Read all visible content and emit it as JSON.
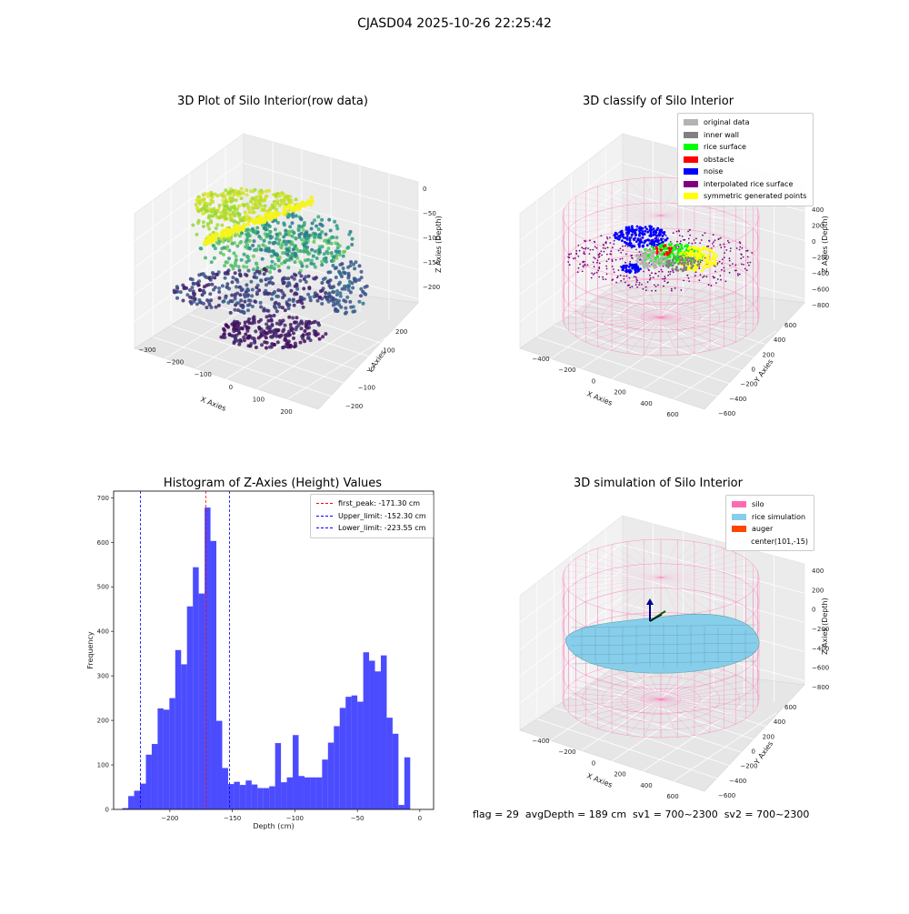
{
  "suptitle": "CJASD04 2025-10-26 22:25:42",
  "panels": {
    "raw": {
      "title": "3D Plot of Silo Interior(row data)",
      "xlabel": "X Axies",
      "ylabel": "Y Axies",
      "zlabel": "Z Axies (Depth)",
      "xticks": [
        "−300",
        "−200",
        "−100",
        "0",
        "100",
        "200"
      ],
      "yticks": [
        "−200",
        "−100",
        "0",
        "100",
        "200"
      ],
      "zticks": [
        "0",
        "−50",
        "−100",
        "−150",
        "−200"
      ]
    },
    "classify": {
      "title": "3D classify of Silo Interior",
      "xlabel": "X Axies",
      "ylabel": "Y Axies",
      "zlabel": "Z Axies (Depth)",
      "xticks": [
        "−400",
        "−200",
        "0",
        "200",
        "400",
        "600"
      ],
      "yticks": [
        "−600",
        "−400",
        "−200",
        "0",
        "200",
        "400",
        "600"
      ],
      "zticks": [
        "400",
        "200",
        "0",
        "−200",
        "−400",
        "−600",
        "−800"
      ],
      "legend": [
        {
          "label": "original data",
          "color": "#b3b3b3"
        },
        {
          "label": "inner wall",
          "color": "#808080"
        },
        {
          "label": "rice surface",
          "color": "#00ff00"
        },
        {
          "label": "obstacle",
          "color": "#ff0000"
        },
        {
          "label": "noise",
          "color": "#0000ff"
        },
        {
          "label": "interpolated rice surface",
          "color": "#800080"
        },
        {
          "label": "symmetric generated points",
          "color": "#ffff00"
        }
      ]
    },
    "simulation": {
      "title": "3D simulation of Silo Interior",
      "xlabel": "X Axies",
      "ylabel": "Y Axies",
      "zlabel": "Z Axies (Depth)",
      "xticks": [
        "−400",
        "−200",
        "0",
        "200",
        "400",
        "600"
      ],
      "yticks": [
        "−600",
        "−400",
        "−200",
        "0",
        "200",
        "400",
        "600"
      ],
      "zticks": [
        "400",
        "200",
        "0",
        "−200",
        "−400",
        "−600",
        "−800"
      ],
      "legend": [
        {
          "label": "silo",
          "color": "#ff69b4"
        },
        {
          "label": "rice simulation",
          "color": "#87ceeb"
        },
        {
          "label": "auger",
          "color": "#ff4500"
        },
        {
          "label": "center(101,-15)",
          "color": ""
        }
      ]
    }
  },
  "chart_data": {
    "type": "bar",
    "title": "Histogram of Z-Axies (Height) Values",
    "xlabel": "Depth (cm)",
    "ylabel": "Frequency",
    "xlim": [
      -245,
      11
    ],
    "ylim": [
      0,
      715
    ],
    "bin_width": 4.7,
    "bins_start": -238.0,
    "values": [
      3,
      30,
      42,
      58,
      123,
      147,
      227,
      224,
      250,
      358,
      326,
      456,
      544,
      485,
      678,
      603,
      199,
      93,
      57,
      62,
      55,
      65,
      56,
      48,
      48,
      52,
      149,
      61,
      72,
      167,
      75,
      72,
      72,
      72,
      112,
      150,
      187,
      228,
      253,
      256,
      242,
      353,
      334,
      310,
      346,
      206,
      170,
      10,
      117
    ],
    "bar_color": "#0000ff",
    "xticks": [
      "−200",
      "−150",
      "−100",
      "−50",
      "0"
    ],
    "xtick_values": [
      -200,
      -150,
      -100,
      -50,
      0
    ],
    "yticks": [
      "0",
      "100",
      "200",
      "300",
      "400",
      "500",
      "600",
      "700"
    ],
    "ytick_values": [
      0,
      100,
      200,
      300,
      400,
      500,
      600,
      700
    ],
    "vlines": [
      {
        "label": "first_peak: -171.30 cm",
        "x": -171.3,
        "color": "#ff0000"
      },
      {
        "label": "Upper_limit: -152.30 cm",
        "x": -152.3,
        "color": "#0000ff"
      },
      {
        "label": "Lower_limit: -223.55 cm",
        "x": -223.55,
        "color": "#0000ff"
      }
    ],
    "legend_position": "upper right"
  },
  "footer": "flag = 29  avgDepth = 189 cm  sv1 = 700~2300  sv2 = 700~2300"
}
